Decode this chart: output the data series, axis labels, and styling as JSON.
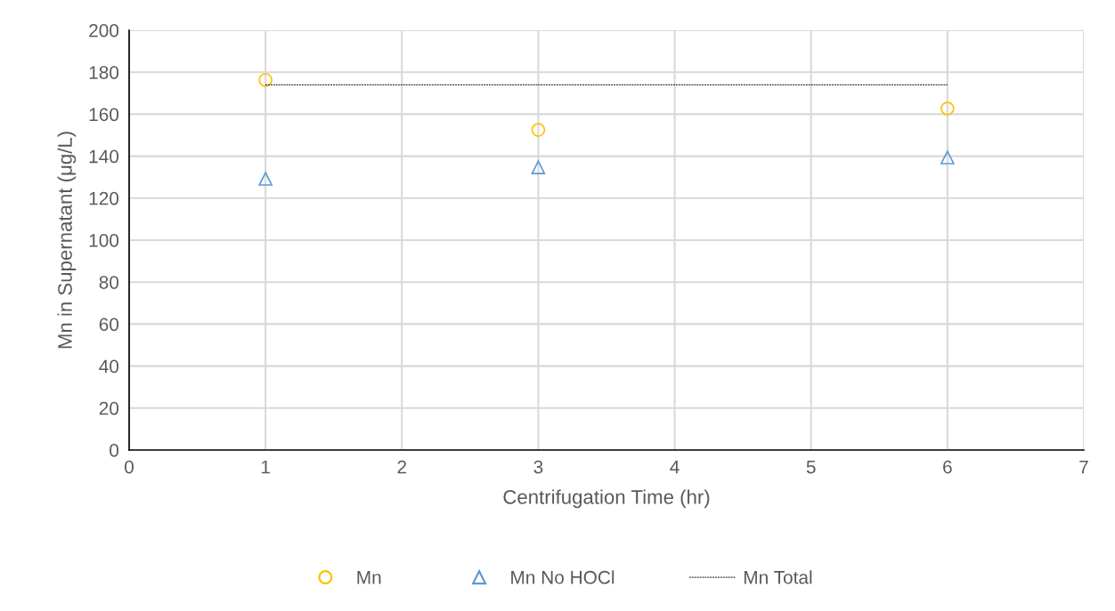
{
  "chart_data": {
    "type": "scatter",
    "xlabel": "Centrifugation Time (hr)",
    "ylabel": "Mn in Supernatant (μg/L)",
    "xlim": [
      0,
      7
    ],
    "xticks": [
      0,
      1,
      2,
      3,
      4,
      5,
      6,
      7
    ],
    "ylim": [
      0,
      200
    ],
    "yticks": [
      0,
      20,
      40,
      60,
      80,
      100,
      120,
      140,
      160,
      180,
      200
    ],
    "grid": true,
    "legend": "bottom",
    "series": [
      {
        "name": "Mn",
        "marker": "circle",
        "color": "#ffc000",
        "x": [
          1,
          3,
          6
        ],
        "values": [
          176.3,
          152.5,
          162.7
        ]
      },
      {
        "name": "Mn No HOCl",
        "marker": "triangle",
        "color": "#5b9bd5",
        "x": [
          1,
          3,
          6
        ],
        "values": [
          129.2,
          134.7,
          139.4
        ]
      },
      {
        "name": "Mn Total",
        "type": "line",
        "marker": "none",
        "line_style": "dashed",
        "color": "#000000",
        "x": [
          1,
          6
        ],
        "values": [
          174,
          174
        ]
      }
    ]
  }
}
